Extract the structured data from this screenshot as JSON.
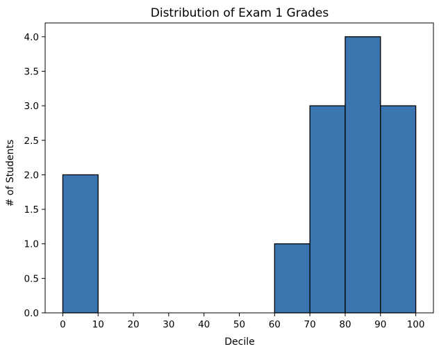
{
  "chart_data": {
    "type": "bar",
    "title": "Distribution of Exam 1 Grades",
    "xlabel": "Decile",
    "ylabel": "# of Students",
    "bins": [
      {
        "start": 0,
        "end": 10,
        "count": 2
      },
      {
        "start": 10,
        "end": 20,
        "count": 0
      },
      {
        "start": 20,
        "end": 30,
        "count": 0
      },
      {
        "start": 30,
        "end": 40,
        "count": 0
      },
      {
        "start": 40,
        "end": 50,
        "count": 0
      },
      {
        "start": 50,
        "end": 60,
        "count": 0
      },
      {
        "start": 60,
        "end": 70,
        "count": 1
      },
      {
        "start": 70,
        "end": 80,
        "count": 3
      },
      {
        "start": 80,
        "end": 90,
        "count": 4
      },
      {
        "start": 90,
        "end": 100,
        "count": 3
      }
    ],
    "xticks": [
      "0",
      "10",
      "20",
      "30",
      "40",
      "50",
      "60",
      "70",
      "80",
      "90",
      "100"
    ],
    "yticks": [
      "0.0",
      "0.5",
      "1.0",
      "1.5",
      "2.0",
      "2.5",
      "3.0",
      "3.5",
      "4.0"
    ],
    "xlim": [
      -5,
      105
    ],
    "ylim": [
      0,
      4.2
    ],
    "grid": false,
    "colors": {
      "bar_fill": "#3b75af",
      "bar_edge": "#000000",
      "axis": "#000000"
    }
  }
}
